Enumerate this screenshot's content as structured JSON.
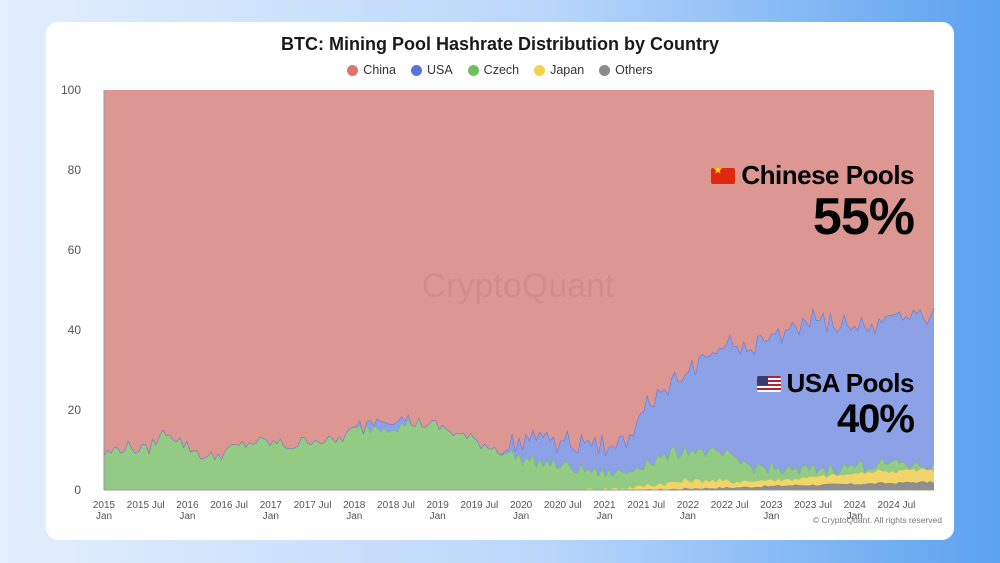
{
  "chart_data": {
    "type": "area",
    "stacked": true,
    "title": "BTC: Mining Pool Hashrate Distribution by Country",
    "xlabel": "",
    "ylabel": "",
    "ylim": [
      0,
      100
    ],
    "yticks": [
      0,
      20,
      40,
      60,
      80,
      100
    ],
    "x_range": [
      "2015-01",
      "2024-12"
    ],
    "x_ticks": [
      {
        "line1": "2015",
        "line2": "Jan",
        "t": 0
      },
      {
        "line1": "2015 Jul",
        "line2": "",
        "t": 0.5
      },
      {
        "line1": "2016",
        "line2": "Jan",
        "t": 1
      },
      {
        "line1": "2016 Jul",
        "line2": "",
        "t": 1.5
      },
      {
        "line1": "2017",
        "line2": "Jan",
        "t": 2
      },
      {
        "line1": "2017 Jul",
        "line2": "",
        "t": 2.5
      },
      {
        "line1": "2018",
        "line2": "Jan",
        "t": 3
      },
      {
        "line1": "2018 Jul",
        "line2": "",
        "t": 3.5
      },
      {
        "line1": "2019",
        "line2": "Jan",
        "t": 4
      },
      {
        "line1": "2019 Jul",
        "line2": "",
        "t": 4.5
      },
      {
        "line1": "2020",
        "line2": "Jan",
        "t": 5
      },
      {
        "line1": "2020 Jul",
        "line2": "",
        "t": 5.5
      },
      {
        "line1": "2021",
        "line2": "Jan",
        "t": 6
      },
      {
        "line1": "2021 Jul",
        "line2": "",
        "t": 6.5
      },
      {
        "line1": "2022",
        "line2": "Jan",
        "t": 7
      },
      {
        "line1": "2022 Jul",
        "line2": "",
        "t": 7.5
      },
      {
        "line1": "2023",
        "line2": "Jan",
        "t": 8
      },
      {
        "line1": "2023 Jul",
        "line2": "",
        "t": 8.5
      },
      {
        "line1": "2024",
        "line2": "Jan",
        "t": 9
      },
      {
        "line1": "2024 Jul",
        "line2": "",
        "t": 9.5
      }
    ],
    "x": [
      "2015-01",
      "2015-04",
      "2015-07",
      "2015-10",
      "2016-01",
      "2016-04",
      "2016-07",
      "2016-10",
      "2017-01",
      "2017-04",
      "2017-07",
      "2017-10",
      "2018-01",
      "2018-04",
      "2018-07",
      "2018-10",
      "2019-01",
      "2019-04",
      "2019-07",
      "2019-10",
      "2020-01",
      "2020-04",
      "2020-07",
      "2020-10",
      "2021-01",
      "2021-04",
      "2021-07",
      "2021-10",
      "2022-01",
      "2022-04",
      "2022-07",
      "2022-10",
      "2023-01",
      "2023-04",
      "2023-07",
      "2023-10",
      "2024-01",
      "2024-04",
      "2024-07",
      "2024-10",
      "2024-12"
    ],
    "series": [
      {
        "name": "Others",
        "color": "#8e8e8e",
        "values": [
          0,
          0,
          0,
          0,
          0,
          0,
          0,
          0,
          0,
          0,
          0,
          0,
          0,
          0,
          0,
          0,
          0,
          0,
          0,
          0,
          0,
          0,
          0,
          0,
          0,
          0,
          0,
          0.2,
          0.4,
          0.5,
          0.6,
          0.8,
          1.0,
          1.2,
          1.3,
          1.4,
          1.5,
          1.7,
          1.8,
          2.0,
          2.0
        ]
      },
      {
        "name": "Japan",
        "color": "#f2d46b",
        "values": [
          0,
          0,
          0,
          0,
          0,
          0,
          0,
          0,
          0,
          0,
          0,
          0,
          0,
          0,
          0,
          0,
          0,
          0,
          0,
          0,
          0,
          0,
          0,
          0,
          0.3,
          0.5,
          1.0,
          1.5,
          2.0,
          2.0,
          1.5,
          1.5,
          1.5,
          1.5,
          2.0,
          2.0,
          2.5,
          3.0,
          3.0,
          3.0,
          3.0
        ]
      },
      {
        "name": "Czech",
        "color": "#93cb85",
        "values": [
          9,
          11,
          10,
          15,
          11,
          8,
          10,
          12,
          12,
          11,
          13,
          12,
          15,
          16,
          16,
          17,
          16,
          14,
          12,
          10,
          8,
          7,
          6,
          5,
          4,
          4,
          6,
          7,
          8,
          7,
          6,
          4,
          3,
          2,
          2,
          2,
          2,
          2,
          2,
          1,
          1
        ]
      },
      {
        "name": "USA",
        "color": "#8da1e6",
        "values": [
          0,
          0,
          0,
          0,
          0,
          0,
          0,
          0,
          0,
          0,
          0,
          0,
          0,
          2,
          2,
          0,
          0,
          0,
          0,
          0,
          5,
          6,
          6,
          7,
          7,
          8,
          14,
          18,
          20,
          24,
          28,
          30,
          32,
          36,
          38,
          36,
          35,
          35,
          36,
          38,
          38
        ]
      },
      {
        "name": "China",
        "color": "#dc9792",
        "values": [
          91,
          89,
          90,
          85,
          89,
          92,
          90,
          88,
          88,
          89,
          87,
          88,
          85,
          82,
          82,
          83,
          84,
          86,
          88,
          90,
          87,
          87,
          88,
          88,
          88.7,
          87.5,
          79,
          73.3,
          69.6,
          66.5,
          63.9,
          63.7,
          62.5,
          59.3,
          56.7,
          58.6,
          59,
          58.3,
          57.2,
          56,
          56
        ]
      }
    ],
    "legend": [
      "China",
      "USA",
      "Czech",
      "Japan",
      "Others"
    ],
    "legend_colors": [
      "#e0736d",
      "#5b73db",
      "#6fbf5e",
      "#f0d24e",
      "#8a8a8a"
    ],
    "legend_position": "top-center",
    "grid": false,
    "watermark": "CryptoQuant",
    "annotations": [
      {
        "label": "Chinese Pools",
        "value": "55%"
      },
      {
        "label": "USA Pools",
        "value": "40%"
      }
    ],
    "copyright": "© CryptoQuant. All rights reserved"
  }
}
